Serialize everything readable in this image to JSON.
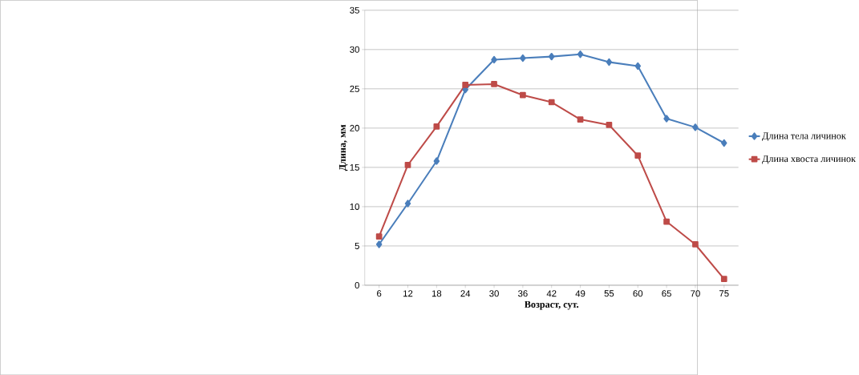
{
  "chart_data": {
    "type": "line",
    "xlabel": "Возраст, сут.",
    "ylabel": "Длина, мм",
    "categories": [
      "6",
      "12",
      "18",
      "24",
      "30",
      "36",
      "42",
      "49",
      "55",
      "60",
      "65",
      "70",
      "75"
    ],
    "series": [
      {
        "name": "Длина тела личинок",
        "color": "#4a7ebb",
        "marker": "diamond",
        "values": [
          5.2,
          10.4,
          15.8,
          24.9,
          28.7,
          28.9,
          29.1,
          29.4,
          28.4,
          27.9,
          21.2,
          20.1,
          18.1
        ]
      },
      {
        "name": "Длина хвоста личинок",
        "color": "#be4b48",
        "marker": "square",
        "values": [
          6.2,
          15.3,
          20.2,
          25.5,
          25.6,
          24.2,
          23.3,
          21.1,
          20.4,
          16.5,
          8.1,
          5.2,
          0.8
        ]
      }
    ],
    "ylim": [
      0,
      35
    ],
    "yticks": [
      0,
      5,
      10,
      15,
      20,
      25,
      30,
      35
    ],
    "grid": "y",
    "legend": "right",
    "line_style": "solid"
  }
}
